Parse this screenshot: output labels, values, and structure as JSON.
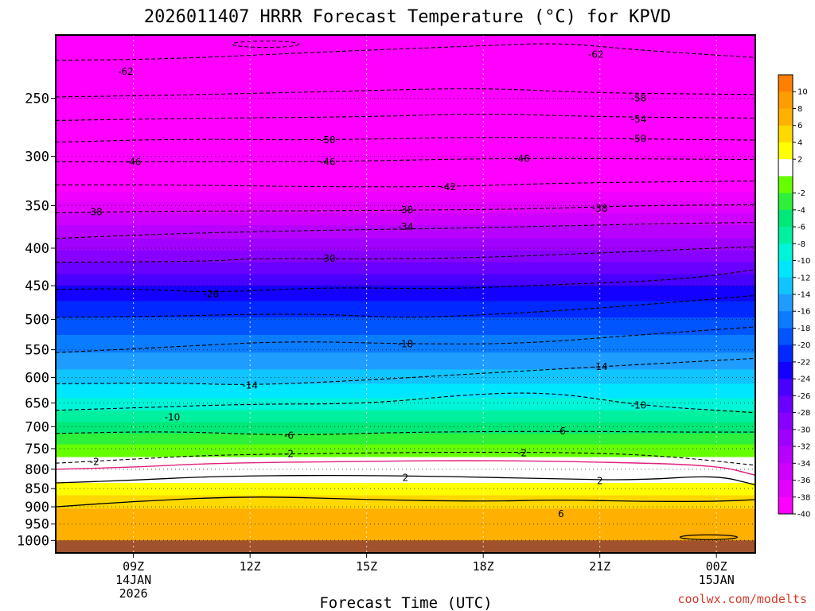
{
  "title": "2026011407 HRRR Forecast Temperature (°C) for KPVD",
  "xlabel": "Forecast Time (UTC)",
  "credit": "coolwx.com/modelts",
  "chart_data": {
    "type": "contour",
    "title": "2026011407 HRRR Forecast Temperature (°C) for KPVD",
    "xlabel": "Forecast Time (UTC)",
    "ylabel": "",
    "y_scale": "log-pressure (inverted)",
    "ylim": [
      1040,
      205
    ],
    "xlim": [
      "2026-01-14 07Z",
      "2026-01-15 01Z"
    ],
    "y_ticks": [
      250,
      300,
      350,
      400,
      450,
      500,
      550,
      600,
      650,
      700,
      750,
      800,
      850,
      900,
      950,
      1000
    ],
    "y_tick_labels": [
      "250",
      "300",
      "350",
      "400",
      "450",
      "500",
      "550",
      "600",
      "650",
      "700",
      "750",
      "800",
      "850",
      "900",
      "950",
      "1000"
    ],
    "x_ticks": [
      {
        "hour": 9,
        "lines": [
          "09Z",
          "14JAN",
          "2026"
        ]
      },
      {
        "hour": 12,
        "lines": [
          "12Z"
        ]
      },
      {
        "hour": 15,
        "lines": [
          "15Z"
        ]
      },
      {
        "hour": 18,
        "lines": [
          "18Z"
        ]
      },
      {
        "hour": 21,
        "lines": [
          "21Z"
        ]
      },
      {
        "hour": 24,
        "lines": [
          "00Z",
          "15JAN"
        ]
      }
    ],
    "grid": true,
    "contour_labels": [
      {
        "value": "-62",
        "hour": 8.8,
        "p": 230
      },
      {
        "value": "-62",
        "hour": 20.9,
        "p": 218
      },
      {
        "value": "-58",
        "hour": 22.0,
        "p": 250
      },
      {
        "value": "-54",
        "hour": 22.0,
        "p": 267
      },
      {
        "value": "-50",
        "hour": 14.0,
        "p": 285
      },
      {
        "value": "-50",
        "hour": 22.0,
        "p": 284
      },
      {
        "value": "-46",
        "hour": 9.0,
        "p": 305
      },
      {
        "value": "-46",
        "hour": 14.0,
        "p": 305
      },
      {
        "value": "-46",
        "hour": 19.0,
        "p": 302
      },
      {
        "value": "-42",
        "hour": 17.1,
        "p": 330
      },
      {
        "value": "-38",
        "hour": 8.0,
        "p": 357
      },
      {
        "value": "-38",
        "hour": 16.0,
        "p": 355
      },
      {
        "value": "-38",
        "hour": 21.0,
        "p": 353
      },
      {
        "value": "-34",
        "hour": 16.0,
        "p": 374
      },
      {
        "value": "-30",
        "hour": 14.0,
        "p": 413
      },
      {
        "value": "-26",
        "hour": 11.0,
        "p": 462
      },
      {
        "value": "-18",
        "hour": 16.0,
        "p": 540
      },
      {
        "value": "-14",
        "hour": 12.0,
        "p": 615
      },
      {
        "value": "-14",
        "hour": 21.0,
        "p": 580
      },
      {
        "value": "-10",
        "hour": 10.0,
        "p": 680
      },
      {
        "value": "-10",
        "hour": 22.0,
        "p": 655
      },
      {
        "value": "-6",
        "hour": 13.0,
        "p": 720
      },
      {
        "value": "-6",
        "hour": 20.0,
        "p": 710
      },
      {
        "value": "-2",
        "hour": 8.0,
        "p": 782
      },
      {
        "value": "-2",
        "hour": 13.0,
        "p": 762
      },
      {
        "value": "-2",
        "hour": 19.0,
        "p": 760
      },
      {
        "value": "2",
        "hour": 16.0,
        "p": 822
      },
      {
        "value": "2",
        "hour": 21.0,
        "p": 830
      },
      {
        "value": "6",
        "hour": 20.0,
        "p": 920
      }
    ],
    "isotherms": [
      {
        "value": -62,
        "style": "dashed",
        "points": [
          [
            7,
            222
          ],
          [
            10,
            221
          ],
          [
            14,
            216
          ],
          [
            18,
            212
          ],
          [
            20,
            210
          ],
          [
            22,
            215
          ],
          [
            25,
            220
          ]
        ]
      },
      {
        "value": -58,
        "style": "dashed",
        "points": [
          [
            7,
            249
          ],
          [
            11,
            247
          ],
          [
            15,
            244
          ],
          [
            18,
            242
          ],
          [
            21,
            246
          ],
          [
            25,
            247
          ]
        ]
      },
      {
        "value": -54,
        "style": "dashed",
        "points": [
          [
            7,
            268
          ],
          [
            11,
            266
          ],
          [
            15,
            265
          ],
          [
            18,
            262
          ],
          [
            21,
            265
          ],
          [
            25,
            266
          ]
        ]
      },
      {
        "value": -50,
        "style": "dashed",
        "points": [
          [
            7,
            287
          ],
          [
            10,
            284
          ],
          [
            14,
            285
          ],
          [
            18,
            282
          ],
          [
            22,
            284
          ],
          [
            25,
            285
          ]
        ]
      },
      {
        "value": -46,
        "style": "dashed",
        "points": [
          [
            7,
            305
          ],
          [
            10,
            305
          ],
          [
            14,
            305
          ],
          [
            18,
            302
          ],
          [
            21,
            302
          ],
          [
            25,
            303
          ]
        ]
      },
      {
        "value": -42,
        "style": "dashed",
        "points": [
          [
            7,
            328
          ],
          [
            10,
            328
          ],
          [
            14,
            330
          ],
          [
            17,
            330
          ],
          [
            20,
            326
          ],
          [
            25,
            324
          ]
        ]
      },
      {
        "value": -38,
        "style": "dashed",
        "points": [
          [
            7,
            358
          ],
          [
            10,
            356
          ],
          [
            13,
            356
          ],
          [
            16,
            355
          ],
          [
            19,
            354
          ],
          [
            22,
            350
          ],
          [
            25,
            349
          ]
        ]
      },
      {
        "value": -34,
        "style": "dashed",
        "points": [
          [
            7,
            388
          ],
          [
            9,
            384
          ],
          [
            11,
            381
          ],
          [
            14,
            378
          ],
          [
            17,
            376
          ],
          [
            21,
            372
          ],
          [
            23,
            370
          ],
          [
            25,
            369
          ]
        ]
      },
      {
        "value": -30,
        "style": "dashed",
        "points": [
          [
            7,
            418
          ],
          [
            11,
            417
          ],
          [
            12,
            413
          ],
          [
            15,
            414
          ],
          [
            18,
            412
          ],
          [
            21,
            406
          ],
          [
            25,
            398
          ]
        ]
      },
      {
        "value": -26,
        "style": "dashed",
        "points": [
          [
            7,
            455
          ],
          [
            9,
            454
          ],
          [
            11,
            460
          ],
          [
            14,
            452
          ],
          [
            17,
            455
          ],
          [
            20,
            448
          ],
          [
            23,
            442
          ],
          [
            25,
            428
          ]
        ]
      },
      {
        "value": -22,
        "style": "dashed",
        "points": [
          [
            7,
            497
          ],
          [
            10,
            495
          ],
          [
            12,
            492
          ],
          [
            14,
            492
          ],
          [
            16,
            498
          ],
          [
            18,
            493
          ],
          [
            21,
            483
          ],
          [
            25,
            464
          ]
        ]
      },
      {
        "value": -18,
        "style": "dashed",
        "points": [
          [
            7,
            555
          ],
          [
            10,
            545
          ],
          [
            13,
            535
          ],
          [
            16,
            540
          ],
          [
            19,
            540
          ],
          [
            22,
            525
          ],
          [
            25,
            512
          ]
        ]
      },
      {
        "value": -14,
        "style": "dashed",
        "points": [
          [
            7,
            612
          ],
          [
            10,
            610
          ],
          [
            12,
            615
          ],
          [
            15,
            605
          ],
          [
            18,
            592
          ],
          [
            21,
            580
          ],
          [
            25,
            565
          ]
        ]
      },
      {
        "value": -10,
        "style": "dashed",
        "points": [
          [
            7,
            665
          ],
          [
            9,
            660
          ],
          [
            12,
            652
          ],
          [
            15,
            652
          ],
          [
            18,
            630
          ],
          [
            20,
            630
          ],
          [
            22,
            655
          ],
          [
            25,
            670
          ]
        ]
      },
      {
        "value": -6,
        "style": "dashed",
        "points": [
          [
            7,
            715
          ],
          [
            10,
            710
          ],
          [
            13,
            720
          ],
          [
            16,
            712
          ],
          [
            20,
            710
          ],
          [
            23,
            712
          ],
          [
            25,
            712
          ]
        ]
      },
      {
        "value": -2,
        "style": "dashed",
        "points": [
          [
            7,
            785
          ],
          [
            9,
            775
          ],
          [
            11,
            765
          ],
          [
            15,
            760
          ],
          [
            18,
            758
          ],
          [
            21,
            760
          ],
          [
            23,
            770
          ],
          [
            25,
            790
          ]
        ]
      },
      {
        "value": 0,
        "style": "solid-magenta",
        "points": [
          [
            7,
            800
          ],
          [
            9,
            795
          ],
          [
            11,
            785
          ],
          [
            15,
            780
          ],
          [
            18,
            778
          ],
          [
            21,
            782
          ],
          [
            24,
            790
          ],
          [
            25,
            815
          ]
        ]
      },
      {
        "value": 2,
        "style": "solid",
        "points": [
          [
            7,
            835
          ],
          [
            9,
            828
          ],
          [
            11,
            818
          ],
          [
            14,
            815
          ],
          [
            17,
            818
          ],
          [
            20,
            825
          ],
          [
            22,
            828
          ],
          [
            24,
            815
          ],
          [
            25,
            840
          ]
        ]
      },
      {
        "value": 6,
        "style": "solid",
        "points": [
          [
            7,
            900
          ],
          [
            9,
            885
          ],
          [
            12,
            870
          ],
          [
            15,
            880
          ],
          [
            18,
            885
          ],
          [
            20,
            880
          ],
          [
            22,
            885
          ],
          [
            24,
            885
          ],
          [
            25,
            880
          ]
        ]
      }
    ],
    "fill_bands": [
      {
        "p_top": 205,
        "p_bot": 335,
        "color": "#ff00ff"
      },
      {
        "p_top": 335,
        "p_bot": 345,
        "color": "#f000ff"
      },
      {
        "p_top": 345,
        "p_bot": 358,
        "color": "#e400ff"
      },
      {
        "p_top": 358,
        "p_bot": 372,
        "color": "#d000ff"
      },
      {
        "p_top": 372,
        "p_bot": 388,
        "color": "#b800ff"
      },
      {
        "p_top": 388,
        "p_bot": 403,
        "color": "#a000ff"
      },
      {
        "p_top": 403,
        "p_bot": 418,
        "color": "#8800ff"
      },
      {
        "p_top": 418,
        "p_bot": 434,
        "color": "#6a00ff"
      },
      {
        "p_top": 434,
        "p_bot": 450,
        "color": "#4800ff"
      },
      {
        "p_top": 450,
        "p_bot": 472,
        "color": "#1400ff"
      },
      {
        "p_top": 472,
        "p_bot": 497,
        "color": "#0028ff"
      },
      {
        "p_top": 497,
        "p_bot": 525,
        "color": "#0055ff"
      },
      {
        "p_top": 525,
        "p_bot": 555,
        "color": "#0a7cff"
      },
      {
        "p_top": 555,
        "p_bot": 585,
        "color": "#1e9cff"
      },
      {
        "p_top": 585,
        "p_bot": 612,
        "color": "#10c4ff"
      },
      {
        "p_top": 612,
        "p_bot": 640,
        "color": "#00e6ff"
      },
      {
        "p_top": 640,
        "p_bot": 665,
        "color": "#00f4d8"
      },
      {
        "p_top": 665,
        "p_bot": 690,
        "color": "#00f0a0"
      },
      {
        "p_top": 690,
        "p_bot": 715,
        "color": "#00e878"
      },
      {
        "p_top": 715,
        "p_bot": 740,
        "color": "#2cf03c"
      },
      {
        "p_top": 740,
        "p_bot": 770,
        "color": "#66ff00"
      },
      {
        "p_top": 770,
        "p_bot": 800,
        "color": "#ffffff"
      },
      {
        "p_top": 800,
        "p_bot": 835,
        "color": "#ffffff"
      },
      {
        "p_top": 835,
        "p_bot": 868,
        "color": "#ffff00"
      },
      {
        "p_top": 868,
        "p_bot": 905,
        "color": "#ffd800"
      },
      {
        "p_top": 905,
        "p_bot": 1000,
        "color": "#ffb000"
      },
      {
        "p_top": 1000,
        "p_bot": 1040,
        "color": "#a0522d"
      }
    ],
    "legend": {
      "placement": "right",
      "entries": [
        {
          "label": "10",
          "color": "#ff8000"
        },
        {
          "label": "8",
          "color": "#ff9c00"
        },
        {
          "label": "6",
          "color": "#ffb000"
        },
        {
          "label": "4",
          "color": "#ffd800"
        },
        {
          "label": "2",
          "color": "#ffff00"
        },
        {
          "label": "",
          "color": "#ffffff"
        },
        {
          "label": "-2",
          "color": "#66ff00"
        },
        {
          "label": "-4",
          "color": "#2cf03c"
        },
        {
          "label": "-6",
          "color": "#00e878"
        },
        {
          "label": "-8",
          "color": "#00f0a0"
        },
        {
          "label": "-10",
          "color": "#00f4d8"
        },
        {
          "label": "-12",
          "color": "#00e6ff"
        },
        {
          "label": "-14",
          "color": "#10c4ff"
        },
        {
          "label": "-16",
          "color": "#1e9cff"
        },
        {
          "label": "-18",
          "color": "#0a7cff"
        },
        {
          "label": "-20",
          "color": "#0055ff"
        },
        {
          "label": "-22",
          "color": "#0028ff"
        },
        {
          "label": "-24",
          "color": "#1400ff"
        },
        {
          "label": "-26",
          "color": "#4800ff"
        },
        {
          "label": "-28",
          "color": "#6a00ff"
        },
        {
          "label": "-30",
          "color": "#8800ff"
        },
        {
          "label": "-32",
          "color": "#a000ff"
        },
        {
          "label": "-34",
          "color": "#b800ff"
        },
        {
          "label": "-36",
          "color": "#d000ff"
        },
        {
          "label": "-38",
          "color": "#e400ff"
        },
        {
          "label": "-40",
          "color": "#ff00ff"
        }
      ]
    }
  }
}
